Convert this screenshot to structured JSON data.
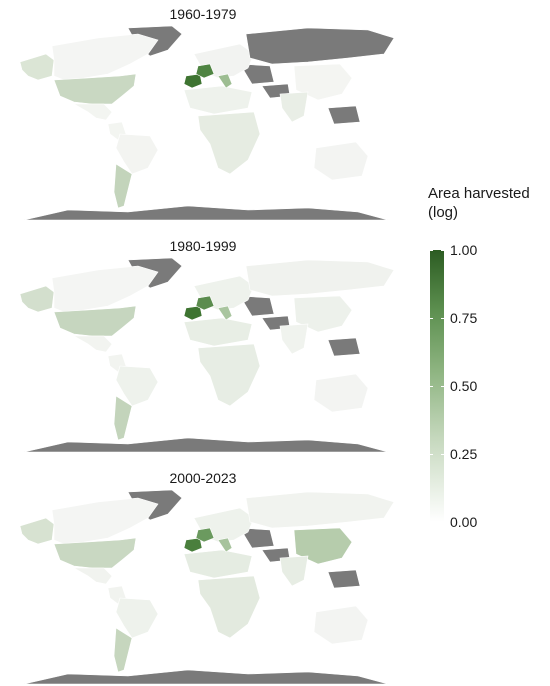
{
  "panels": [
    {
      "title": "1960-1979",
      "fills": {
        "americas": "#f3f5f1",
        "usa": "#c9d8c2",
        "alaska": "#dbe5d5",
        "canada": "#f4f5f3",
        "argentina": "#c3d4bb",
        "brazil": "#f3f4f1",
        "europe": "#f2f3f1",
        "iberia": "#3e7431",
        "france": "#4f8442",
        "italy": "#9dbd92",
        "nafrica": "#eef2ec",
        "russia": "#7a7a7a",
        "china": "#f4f5f2",
        "india": "#e9eee6",
        "australia": "#f3f4f2",
        "greenland": "#7a7a7a",
        "safrica": "#e6ece2"
      }
    },
    {
      "title": "1980-1999",
      "fills": {
        "americas": "#f2f4f0",
        "usa": "#c6d6bf",
        "alaska": "#d3dfcd",
        "canada": "#f4f5f3",
        "argentina": "#c3d4bb",
        "brazil": "#eef2ec",
        "europe": "#eef2ec",
        "iberia": "#3e7431",
        "france": "#5b8c4e",
        "italy": "#a9c59f",
        "nafrica": "#e8eee5",
        "russia": "#f0f2ee",
        "china": "#edf1eb",
        "india": "#f0f3ee",
        "australia": "#f3f4f2",
        "greenland": "#7a7a7a",
        "safrica": "#e7ede4"
      }
    },
    {
      "title": "2000-2023",
      "fills": {
        "americas": "#f1f3ef",
        "usa": "#c9d8c2",
        "alaska": "#d7e2d1",
        "canada": "#f4f5f3",
        "argentina": "#c6d6be",
        "brazil": "#eef2ec",
        "europe": "#eef2ec",
        "iberia": "#4a7f3d",
        "france": "#6b9a5f",
        "italy": "#a7c39d",
        "nafrica": "#e5ece2",
        "russia": "#f1f3ef",
        "china": "#b6ccac",
        "india": "#e7ede4",
        "australia": "#f3f4f2",
        "greenland": "#7a7a7a",
        "safrica": "#e3eadf"
      }
    }
  ],
  "nodata_color": "#7a7a7a",
  "legend": {
    "title_line1": "Area harvested",
    "title_line2": "(log)",
    "ticks": [
      "1.00",
      "0.75",
      "0.50",
      "0.25",
      "0.00"
    ],
    "tick_values": [
      1.0,
      0.75,
      0.5,
      0.25,
      0.0
    ],
    "color_low": "#ffffff",
    "color_high": "#2c5c22"
  }
}
